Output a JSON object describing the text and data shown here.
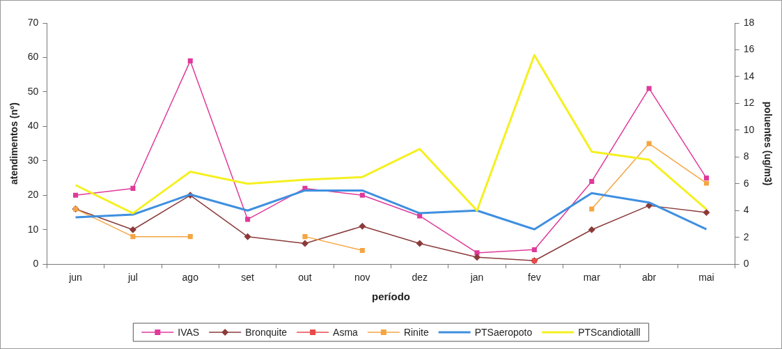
{
  "chart_data": {
    "type": "line",
    "xlabel": "período",
    "ylabel": "atendimentos (nº)",
    "y2label": "poluentes (ug/m3)",
    "categories": [
      "jun",
      "jul",
      "ago",
      "set",
      "out",
      "nov",
      "dez",
      "jan",
      "fev",
      "mar",
      "abr",
      "mai"
    ],
    "ylim": [
      0,
      70
    ],
    "yticks": [
      0,
      10,
      20,
      30,
      40,
      50,
      60,
      70
    ],
    "y2lim": [
      0,
      18
    ],
    "y2ticks": [
      0,
      2,
      4,
      6,
      8,
      10,
      12,
      14,
      16,
      18
    ],
    "grid": false,
    "legend": "bottom",
    "line_style": "solid",
    "series": [
      {
        "name": "IVAS",
        "color": "#e0399a",
        "marker": "square",
        "values": [
          20,
          22,
          59,
          13,
          22,
          20,
          14,
          3.3,
          4.2,
          24,
          51,
          25
        ]
      },
      {
        "name": "Bronquite",
        "color": "#8b3a3a",
        "marker": "diamond",
        "values": [
          16,
          10,
          20,
          8,
          6,
          11,
          6,
          2,
          1,
          10,
          17,
          15
        ]
      },
      {
        "name": "Asma",
        "color": "#e84a4a",
        "marker": "square",
        "values": [
          null,
          null,
          null,
          null,
          null,
          null,
          null,
          null,
          1,
          null,
          null,
          null
        ]
      },
      {
        "name": "Rinite",
        "color": "#f5a540",
        "marker": "square",
        "values": [
          16,
          8,
          8,
          null,
          8,
          4,
          null,
          null,
          null,
          16,
          35,
          23.5
        ]
      },
      {
        "name": "PTSaeropoto",
        "color": "#3f8fe0",
        "marker": "none",
        "axis": "y2",
        "values": [
          3.5,
          3.7,
          5.2,
          4,
          5.5,
          5.5,
          3.8,
          4,
          2.6,
          5.3,
          4.6,
          2.6
        ]
      },
      {
        "name": "PTScandiotalll",
        "color": "#f5f020",
        "marker": "none",
        "axis": "y2",
        "values": [
          5.9,
          3.8,
          6.9,
          6,
          6.3,
          6.5,
          8.6,
          4,
          15.6,
          8.4,
          7.8,
          4.1
        ]
      }
    ]
  }
}
